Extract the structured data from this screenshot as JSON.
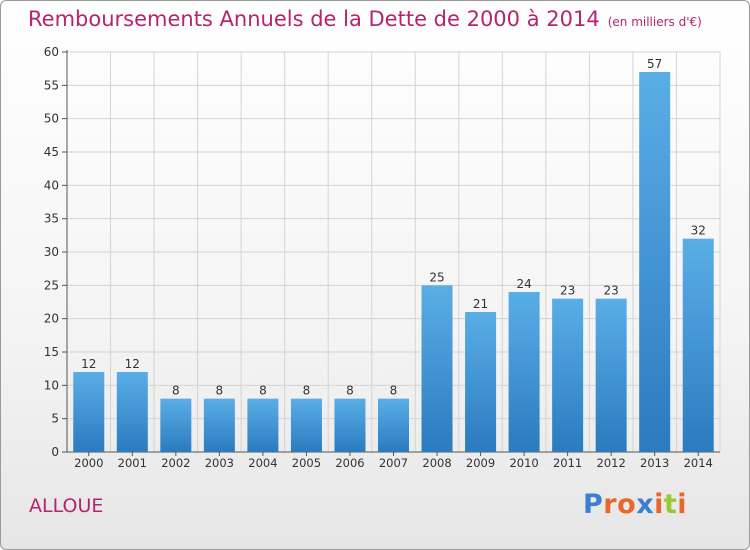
{
  "title": "Remboursements Annuels de la Dette de 2000 à 2014",
  "subtitle": "(en milliers d'€)",
  "commune": "ALLOUE",
  "logo": {
    "text": "Proxiti",
    "letter_colors": [
      "#3a7fd0",
      "#e8672a",
      "#e8672a",
      "#3a7fd0",
      "#e8672a",
      "#9ac833",
      "#e8672a"
    ]
  },
  "colors": {
    "title": "#b5246e",
    "bar_top": "#5aaee6",
    "bar_bottom": "#2a7bbf",
    "grid": "#d4d4d4"
  },
  "chart_data": {
    "type": "bar",
    "categories": [
      "2000",
      "2001",
      "2002",
      "2003",
      "2004",
      "2005",
      "2006",
      "2007",
      "2008",
      "2009",
      "2010",
      "2011",
      "2012",
      "2013",
      "2014"
    ],
    "values": [
      12,
      12,
      8,
      8,
      8,
      8,
      8,
      8,
      25,
      21,
      24,
      23,
      23,
      57,
      32
    ],
    "ylim": [
      0,
      60
    ],
    "yticks": [
      0,
      5,
      10,
      15,
      20,
      25,
      30,
      35,
      40,
      45,
      50,
      55,
      60
    ],
    "grid": true,
    "data_labels": true
  }
}
